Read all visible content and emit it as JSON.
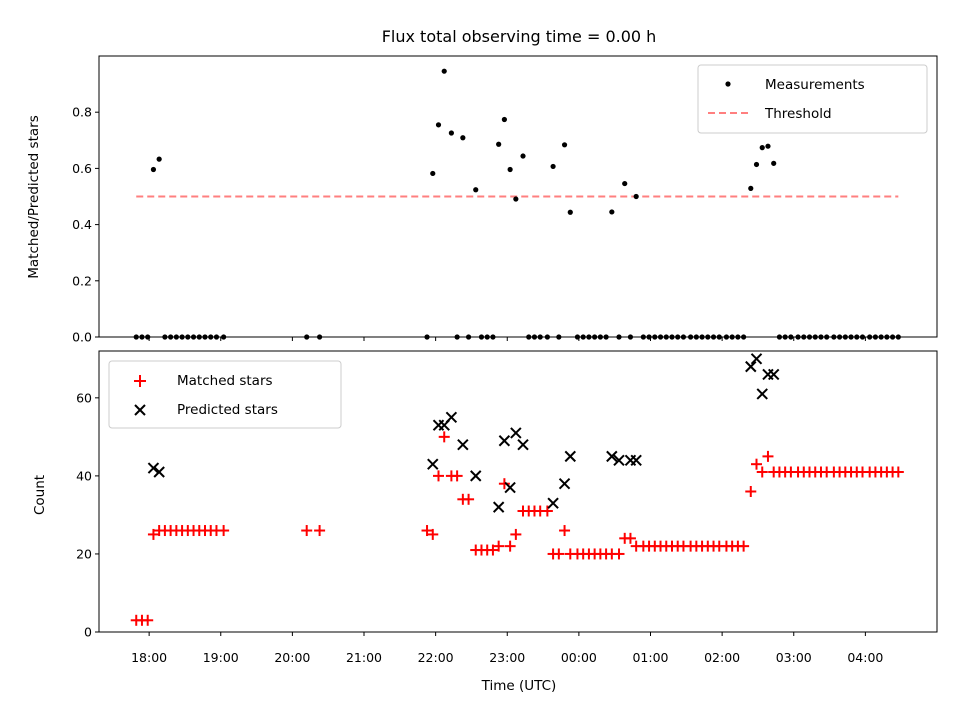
{
  "chart_data": [
    {
      "type": "scatter",
      "title": "Flux total observing time = 0.00 h",
      "xlabel": "",
      "ylabel": "Matched/Predicted stars",
      "ylim": [
        0,
        1.0
      ],
      "yticks": [
        "0.0",
        "0.2",
        "0.4",
        "0.6",
        "0.8"
      ],
      "ytick_values": [
        0,
        0.2,
        0.4,
        0.6,
        0.8
      ],
      "legend": {
        "position": "upper right",
        "entries": [
          "Measurements",
          "Threshold"
        ]
      },
      "series": [
        {
          "name": "Measurements",
          "color": "#000000",
          "marker": "dot",
          "x_hours": [
            17.82,
            17.9,
            17.98,
            18.06,
            18.14,
            18.22,
            18.3,
            18.38,
            18.46,
            18.54,
            18.62,
            18.7,
            18.78,
            18.86,
            18.94,
            19.04,
            20.2,
            20.38,
            21.88,
            21.96,
            22.04,
            22.12,
            22.22,
            22.3,
            22.38,
            22.46,
            22.56,
            22.64,
            22.72,
            22.8,
            22.88,
            22.96,
            23.04,
            23.12,
            23.22,
            23.3,
            23.38,
            23.46,
            23.56,
            23.64,
            23.72,
            23.8,
            23.88,
            23.98,
            24.06,
            24.14,
            24.22,
            24.3,
            24.38,
            24.46,
            24.56,
            24.64,
            24.72,
            24.8,
            24.9,
            24.98,
            25.06,
            25.14,
            25.22,
            25.3,
            25.38,
            25.46,
            25.56,
            25.64,
            25.72,
            25.8,
            25.88,
            25.96,
            26.06,
            26.14,
            26.22,
            26.3,
            26.4,
            26.48,
            26.56,
            26.64,
            26.72,
            26.8,
            26.88,
            26.96,
            27.06,
            27.14,
            27.22,
            27.3,
            27.38,
            27.46,
            27.56,
            27.64,
            27.72,
            27.8,
            27.88,
            27.96,
            28.06,
            28.14,
            28.22,
            28.3,
            28.38,
            28.46
          ],
          "y": [
            0,
            0,
            0,
            0.596,
            0.633,
            0,
            0,
            0,
            0,
            0,
            0,
            0,
            0,
            0,
            0,
            0,
            0,
            0,
            0,
            0.582,
            0.755,
            0.946,
            0.726,
            0,
            0.709,
            0,
            0.524,
            0,
            0,
            0,
            0.686,
            0.774,
            0.596,
            0.491,
            0.644,
            0,
            0,
            0,
            0,
            0.607,
            0,
            0.684,
            0.444,
            0,
            0,
            0,
            0,
            0,
            0,
            0.445,
            0,
            0.546,
            0,
            0.5,
            0,
            0,
            0,
            0,
            0,
            0,
            0,
            0,
            0,
            0,
            0,
            0,
            0,
            0,
            0,
            0,
            0,
            0,
            0.529,
            0.614,
            0.674,
            0.679,
            0.618,
            0,
            0,
            0,
            0,
            0,
            0,
            0,
            0,
            0,
            0,
            0,
            0,
            0,
            0,
            0,
            0,
            0,
            0,
            0,
            0,
            0
          ]
        },
        {
          "name": "Threshold",
          "color": "#ff7f7f",
          "style": "dashed",
          "x_hours": [
            17.82,
            28.46
          ],
          "y": [
            0.5,
            0.5
          ]
        }
      ]
    },
    {
      "type": "scatter",
      "title": "",
      "xlabel": "Time (UTC)",
      "ylabel": "Count",
      "ylim": [
        0,
        72
      ],
      "yticks": [
        "0",
        "20",
        "40",
        "60"
      ],
      "ytick_values": [
        0,
        20,
        40,
        60
      ],
      "xticks": [
        "18:00",
        "19:00",
        "20:00",
        "21:00",
        "22:00",
        "23:00",
        "00:00",
        "01:00",
        "02:00",
        "03:00",
        "04:00"
      ],
      "xtick_hours": [
        18,
        19,
        20,
        21,
        22,
        23,
        24,
        25,
        26,
        27,
        28
      ],
      "xlim_hours": [
        17.3,
        29.0
      ],
      "legend": {
        "position": "upper left",
        "entries": [
          "Matched stars",
          "Predicted stars"
        ]
      },
      "series": [
        {
          "name": "Matched stars",
          "color": "#ff0000",
          "marker": "plus",
          "x_hours": [
            17.82,
            17.9,
            17.98,
            18.06,
            18.14,
            18.22,
            18.3,
            18.38,
            18.46,
            18.54,
            18.62,
            18.7,
            18.78,
            18.86,
            18.94,
            19.04,
            20.2,
            20.38,
            21.88,
            21.96,
            22.04,
            22.12,
            22.22,
            22.3,
            22.38,
            22.46,
            22.56,
            22.64,
            22.72,
            22.8,
            22.88,
            22.96,
            23.04,
            23.12,
            23.22,
            23.3,
            23.38,
            23.46,
            23.56,
            23.64,
            23.72,
            23.8,
            23.88,
            23.98,
            24.06,
            24.14,
            24.22,
            24.3,
            24.38,
            24.46,
            24.56,
            24.64,
            24.72,
            24.8,
            24.9,
            24.98,
            25.06,
            25.14,
            25.22,
            25.3,
            25.38,
            25.46,
            25.56,
            25.64,
            25.72,
            25.8,
            25.88,
            25.96,
            26.06,
            26.14,
            26.22,
            26.3,
            26.4,
            26.48,
            26.56,
            26.64,
            26.72,
            26.8,
            26.88,
            26.96,
            27.06,
            27.14,
            27.22,
            27.3,
            27.38,
            27.46,
            27.56,
            27.64,
            27.72,
            27.8,
            27.88,
            27.96,
            28.06,
            28.14,
            28.22,
            28.3,
            28.38,
            28.46
          ],
          "y": [
            3,
            3,
            3,
            25,
            26,
            26,
            26,
            26,
            26,
            26,
            26,
            26,
            26,
            26,
            26,
            26,
            26,
            26,
            26,
            25,
            40,
            50,
            40,
            40,
            34,
            34,
            21,
            21,
            21,
            21,
            22,
            38,
            22,
            25,
            31,
            31,
            31,
            31,
            31,
            20,
            20,
            26,
            20,
            20,
            20,
            20,
            20,
            20,
            20,
            20,
            20,
            24,
            24,
            22,
            22,
            22,
            22,
            22,
            22,
            22,
            22,
            22,
            22,
            22,
            22,
            22,
            22,
            22,
            22,
            22,
            22,
            22,
            36,
            43,
            41,
            45,
            41,
            41,
            41,
            41,
            41,
            41,
            41,
            41,
            41,
            41,
            41,
            41,
            41,
            41,
            41,
            41,
            41,
            41,
            41,
            41,
            41,
            41
          ]
        },
        {
          "name": "Predicted stars",
          "color": "#000000",
          "marker": "x",
          "x_hours": [
            18.06,
            18.14,
            21.96,
            22.04,
            22.12,
            22.22,
            22.38,
            22.56,
            22.88,
            22.96,
            23.04,
            23.12,
            23.22,
            23.64,
            23.8,
            23.88,
            24.46,
            24.56,
            24.72,
            24.8,
            26.4,
            26.48,
            26.56,
            26.64,
            26.72
          ],
          "y": [
            42,
            41,
            43,
            53,
            53,
            55,
            48,
            40,
            32,
            49,
            37,
            51,
            48,
            33,
            38,
            45,
            45,
            44,
            44,
            44,
            68,
            70,
            61,
            66,
            66
          ]
        }
      ]
    }
  ]
}
